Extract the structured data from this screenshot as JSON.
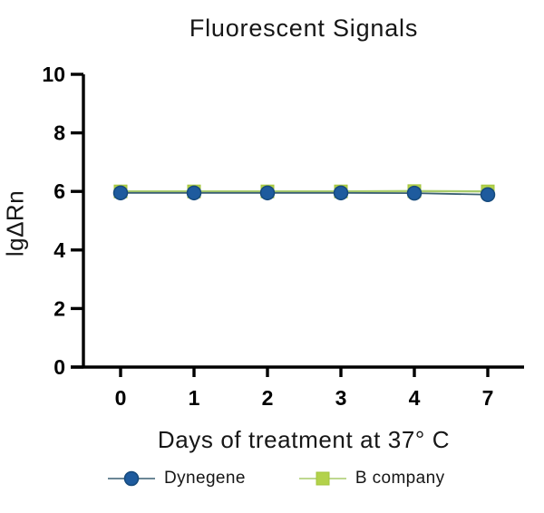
{
  "chart_data": {
    "type": "line",
    "title": "Fluorescent Signals",
    "xlabel": "Days of treatment at 37° C",
    "ylabel": "lgΔRn",
    "x_tick_labels": [
      "0",
      "1",
      "2",
      "3",
      "4",
      "7"
    ],
    "yticks": [
      0,
      2,
      4,
      6,
      8,
      10
    ],
    "ylim": [
      0,
      10
    ],
    "grid": false,
    "legend_position": "bottom",
    "series": [
      {
        "name": "B company",
        "marker": "square",
        "marker_color": "#b3d24b",
        "marker_stroke": "#a3c43c",
        "line_color": "#a9cc6b",
        "values": [
          6.0,
          6.0,
          6.0,
          6.0,
          6.01,
          6.0
        ]
      },
      {
        "name": "Dynegene",
        "marker": "circle",
        "marker_color": "#1e5b9e",
        "marker_stroke": "#164a7c",
        "line_color": "#3a5f73",
        "values": [
          5.95,
          5.95,
          5.95,
          5.95,
          5.94,
          5.89
        ]
      }
    ],
    "axis_color": "#000000",
    "text_color": "#161616"
  }
}
